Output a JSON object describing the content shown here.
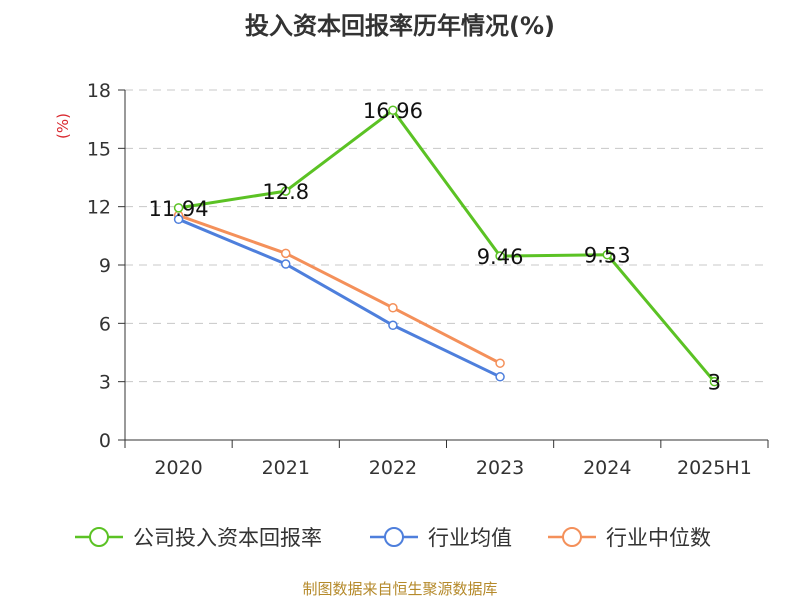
{
  "chart_data": {
    "type": "line",
    "title": "投入资本回报率历年情况(%)",
    "ylabel": "(%)",
    "categories": [
      "2020",
      "2021",
      "2022",
      "2023",
      "2024",
      "2025H1"
    ],
    "yticks": [
      0,
      3,
      6,
      9,
      12,
      15,
      18
    ],
    "ylim": [
      0,
      18
    ],
    "grid": true,
    "legend_position": "bottom",
    "series": [
      {
        "name": "公司投入资本回报率",
        "color": "#5bc224",
        "values": [
          11.94,
          12.8,
          16.96,
          9.46,
          9.53,
          3
        ],
        "labels": [
          "11.94",
          "12.8",
          "16.96",
          "9.46",
          "9.53",
          "3"
        ]
      },
      {
        "name": "行业均值",
        "color": "#4e7fdc",
        "values": [
          11.35,
          9.05,
          5.9,
          3.25,
          null,
          null
        ]
      },
      {
        "name": "行业中位数",
        "color": "#f4905a",
        "values": [
          11.55,
          9.6,
          6.8,
          3.95,
          null,
          null
        ]
      }
    ]
  },
  "source": "制图数据来自恒生聚源数据库"
}
